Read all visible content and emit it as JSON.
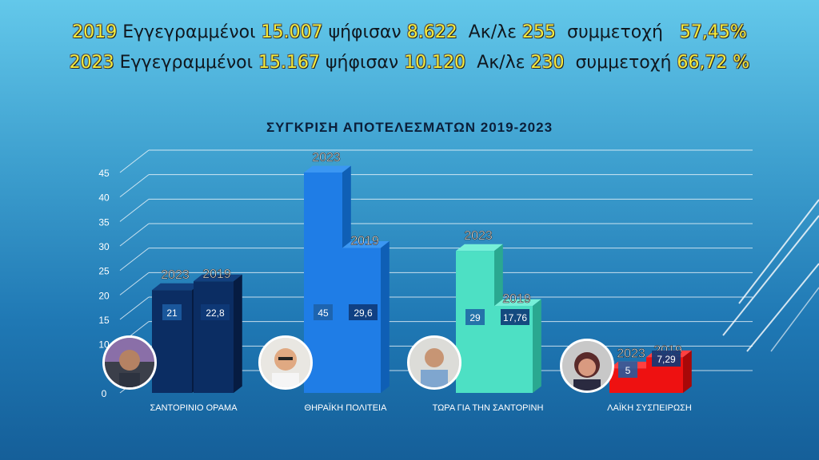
{
  "header": {
    "line1": [
      {
        "text": "2019 ",
        "y": true
      },
      {
        "text": "Εγγεγραμμένοι ",
        "y": false
      },
      {
        "text": "15.007 ",
        "y": true
      },
      {
        "text": "ψήφισαν ",
        "y": false
      },
      {
        "text": "8.622  ",
        "y": true
      },
      {
        "text": "Ακ/λε ",
        "y": false
      },
      {
        "text": "255  ",
        "y": true
      },
      {
        "text": "συμμετοχή   ",
        "y": false
      },
      {
        "text": "57,45%",
        "y": true
      }
    ],
    "line2": [
      {
        "text": "2023 ",
        "y": true
      },
      {
        "text": "Εγγεγραμμένοι ",
        "y": false
      },
      {
        "text": "15.167 ",
        "y": true
      },
      {
        "text": "ψήφισαν ",
        "y": false
      },
      {
        "text": "10.120  ",
        "y": true
      },
      {
        "text": "Ακ/λε ",
        "y": false
      },
      {
        "text": "230  ",
        "y": true
      },
      {
        "text": "συμμετοχή ",
        "y": false
      },
      {
        "text": "66,72 %",
        "y": true
      }
    ]
  },
  "chart_data": {
    "type": "bar",
    "title": "ΣΥΓΚΡΙΣΗ ΑΠΟΤΕΛΕΣΜΑΤΩΝ  2019-2023",
    "categories": [
      "ΣΑΝΤΟΡΙΝΙΟ ΟΡΑΜΑ",
      "ΘΗΡΑΪΚΗ ΠΟΛΙΤΕΙΑ",
      "ΤΩΡΑ ΓΙΑ ΤΗΝ ΣΑΝΤΟΡΙΝΗ",
      "ΛΑΪΚΗ ΣΥΣΠΕΙΡΩΣΗ"
    ],
    "series": [
      {
        "name": "2023",
        "values": [
          21,
          45,
          29,
          5
        ],
        "labels": [
          "21",
          "45",
          "29",
          "5"
        ]
      },
      {
        "name": "2019",
        "values": [
          22.8,
          29.6,
          17.76,
          7.29
        ],
        "labels": [
          "22,8",
          "29,6",
          "17,76",
          "7,29"
        ]
      }
    ],
    "y_ticks": [
      "0",
      "10",
      "15",
      "20",
      "25",
      "30",
      "35",
      "40",
      "45"
    ],
    "ylim": [
      0,
      45
    ],
    "grid": true,
    "colors": {
      "Σαντορίνιο Όραμα": {
        "front": "#0b2d63",
        "side": "#061c42",
        "top": "#12407f"
      },
      "Θηραϊκή Πολιτεία": {
        "front": "#1f7de6",
        "side": "#0f5fb5",
        "top": "#3b97f2"
      },
      "Τώρα": {
        "front": "#4de0c4",
        "side": "#2aa890",
        "top": "#76f0d8"
      },
      "Λαϊκή Συσπείρωση": {
        "front": "#ee1111",
        "side": "#a80808",
        "top": "#ff4040"
      }
    }
  }
}
